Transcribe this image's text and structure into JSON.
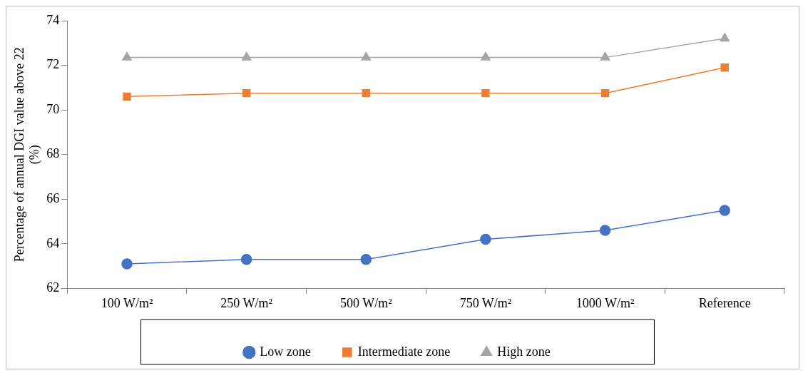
{
  "chart_data": {
    "type": "line",
    "ylabel": "Percentage of annual DGI value above 22 (%)",
    "categories": [
      "100 W/m²",
      "250 W/m²",
      "500 W/m²",
      "750 W/m²",
      "1000 W/m²",
      "Reference"
    ],
    "ylim": [
      62,
      74
    ],
    "yticks": [
      62,
      64,
      66,
      68,
      70,
      72,
      74
    ],
    "grid": false,
    "legend": "bottom",
    "series": [
      {
        "name": "Low zone",
        "color": "#4472c4",
        "marker": "circle",
        "values": [
          63.1,
          63.3,
          63.3,
          64.2,
          64.6,
          65.5
        ]
      },
      {
        "name": "Intermediate zone",
        "color": "#ed7d31",
        "marker": "square",
        "values": [
          70.6,
          70.75,
          70.75,
          70.75,
          70.75,
          71.9
        ]
      },
      {
        "name": "High zone",
        "color": "#a5a5a5",
        "marker": "triangle",
        "values": [
          72.35,
          72.35,
          72.35,
          72.35,
          72.35,
          73.2
        ]
      }
    ]
  }
}
